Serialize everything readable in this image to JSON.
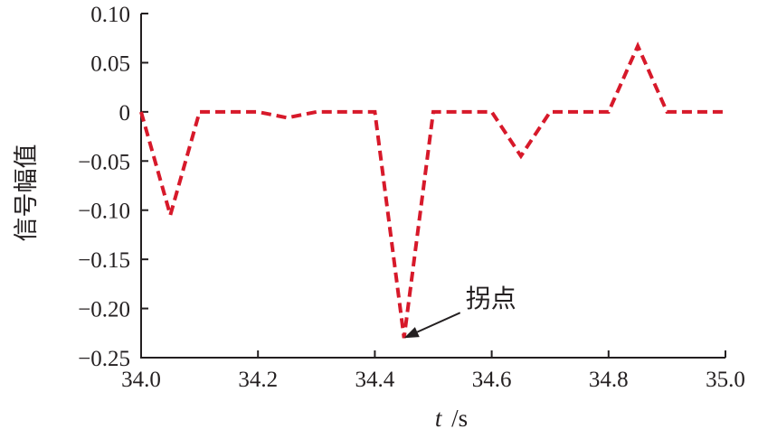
{
  "chart_data": {
    "type": "line",
    "xlabel_italic": "t",
    "xlabel_unit": "/s",
    "ylabel": "信号幅值",
    "xlim": [
      34.0,
      35.0
    ],
    "ylim": [
      -0.25,
      0.1
    ],
    "xticks": [
      34.0,
      34.2,
      34.4,
      34.6,
      34.8,
      35.0
    ],
    "xtick_labels": [
      "34.0",
      "34.2",
      "34.4",
      "34.6",
      "34.8",
      "35.0"
    ],
    "yticks": [
      0.1,
      0.05,
      0,
      -0.05,
      -0.1,
      -0.15,
      -0.2,
      -0.25
    ],
    "ytick_labels": [
      "0.10",
      "0.05",
      "0",
      "−0.05",
      "−0.10",
      "−0.15",
      "−0.20",
      "−0.25"
    ],
    "grid": false,
    "series": [
      {
        "color": "#d7192a",
        "style": "dashed",
        "x": [
          34.0,
          34.05,
          34.1,
          34.2,
          34.25,
          34.3,
          34.4,
          34.45,
          34.5,
          34.6,
          34.65,
          34.7,
          34.8,
          34.85,
          34.9,
          35.0
        ],
        "y": [
          0,
          -0.105,
          0,
          0,
          -0.006,
          0,
          0,
          -0.23,
          0,
          0,
          -0.045,
          0,
          0,
          0.067,
          0,
          0
        ]
      }
    ],
    "annotations": [
      {
        "text": "拐点",
        "x": 34.45,
        "y": -0.23
      }
    ]
  }
}
